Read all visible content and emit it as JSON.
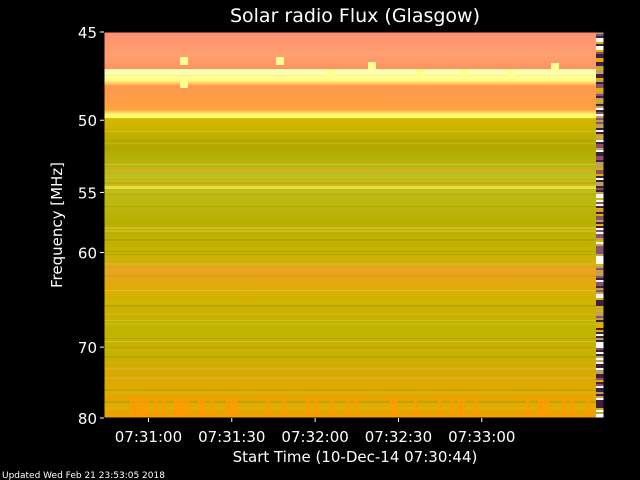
{
  "chart_data": {
    "type": "heatmap",
    "title": "Solar radio Flux (Glasgow)",
    "xlabel": "Start Time (10-Dec-14 07:30:44)",
    "ylabel": "Frequency [MHz]",
    "x_start": "07:30:44",
    "x_end": "07:33:44",
    "x_ticks": [
      "07:31:00",
      "07:31:30",
      "07:32:00",
      "07:32:30",
      "07:33:00"
    ],
    "y_ticks": [
      45,
      50,
      55,
      60,
      70,
      80
    ],
    "ylim": [
      45,
      80
    ],
    "y_scale": "reciprocal",
    "grid": false,
    "colors": {
      "hot": "#ffff80",
      "high": "#ff9868",
      "mid": "#ffa020",
      "low": "#c0b800",
      "background": "#000000"
    }
  },
  "footer": "Updated Wed Feb 21 23:53:05 2018"
}
